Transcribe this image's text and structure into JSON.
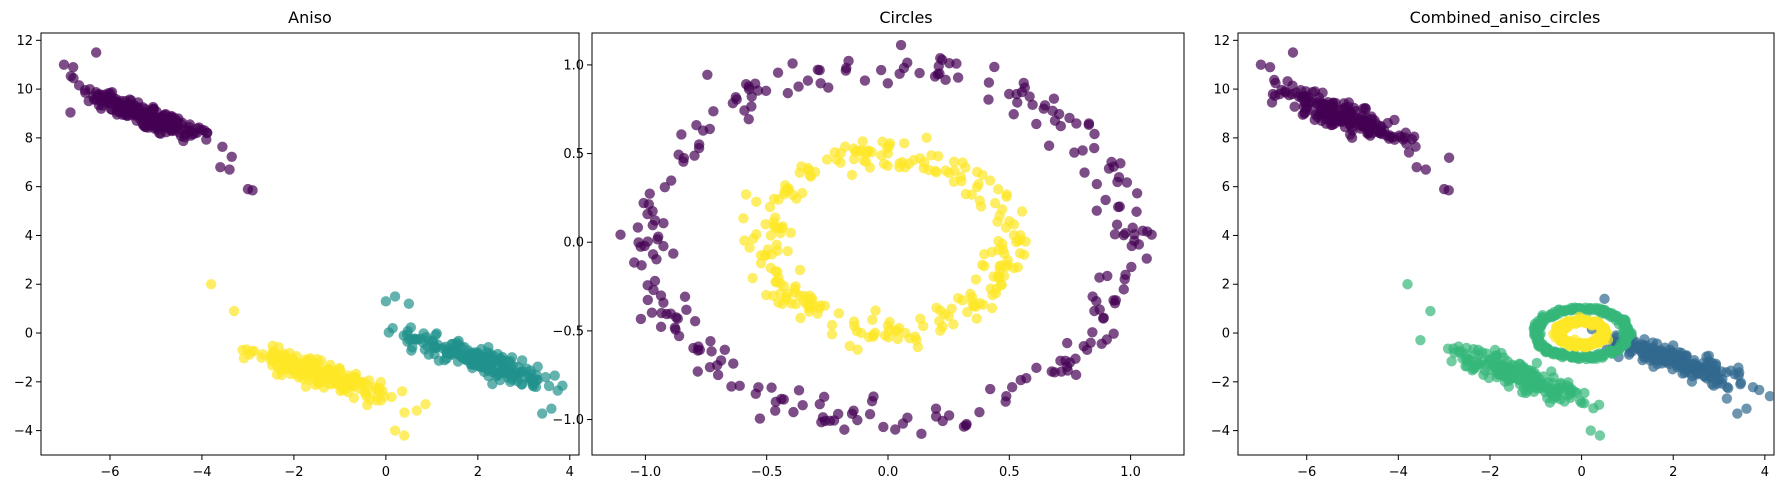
{
  "chart_data": [
    {
      "type": "scatter",
      "title": "Aniso",
      "xlabel": "",
      "ylabel": "",
      "xlim": [
        -7.5,
        4.2
      ],
      "ylim": [
        -5,
        12.3
      ],
      "xticks": [
        -6,
        -4,
        -2,
        0,
        2,
        4
      ],
      "yticks": [
        -4,
        -2,
        0,
        2,
        4,
        6,
        8,
        10,
        12
      ],
      "grid": false,
      "point_alpha": 0.7,
      "clusters": [
        {
          "label": 0,
          "color": "#440154",
          "center": [
            -5.2,
            8.9
          ],
          "direction": [
            0.78,
            -0.62
          ],
          "spread_along": 0.9,
          "spread_across": 0.22,
          "n": 200
        },
        {
          "label": 1,
          "color": "#21918c",
          "center": [
            2.0,
            -1.1
          ],
          "direction": [
            0.82,
            -0.57
          ],
          "spread_along": 0.9,
          "spread_across": 0.22,
          "n": 200
        },
        {
          "label": 2,
          "color": "#fde725",
          "center": [
            -1.4,
            -1.7
          ],
          "direction": [
            0.82,
            -0.57
          ],
          "spread_along": 0.85,
          "spread_across": 0.22,
          "n": 200
        }
      ],
      "extra_points": [
        {
          "x": -7.0,
          "y": 11.0,
          "label": 0
        },
        {
          "x": -6.8,
          "y": 10.9,
          "label": 0
        },
        {
          "x": -6.3,
          "y": 11.5,
          "label": 0
        },
        {
          "x": -3.6,
          "y": 6.8,
          "label": 0
        },
        {
          "x": -3.4,
          "y": 6.7,
          "label": 0
        },
        {
          "x": -3.0,
          "y": 5.9,
          "label": 0
        },
        {
          "x": -2.9,
          "y": 5.85,
          "label": 0
        },
        {
          "x": -3.8,
          "y": 2.0,
          "label": 2
        },
        {
          "x": -3.3,
          "y": 0.9,
          "label": 2
        },
        {
          "x": 0.2,
          "y": -4.0,
          "label": 2
        },
        {
          "x": 0.4,
          "y": -4.2,
          "label": 2
        },
        {
          "x": 0.0,
          "y": 1.3,
          "label": 1
        },
        {
          "x": 0.2,
          "y": 1.5,
          "label": 1
        },
        {
          "x": 0.5,
          "y": 1.2,
          "label": 1
        },
        {
          "x": 3.6,
          "y": -3.1,
          "label": 1
        },
        {
          "x": 3.4,
          "y": -3.3,
          "label": 1
        }
      ]
    },
    {
      "type": "scatter",
      "title": "Circles",
      "xlabel": "",
      "ylabel": "",
      "xlim": [
        -1.22,
        1.22
      ],
      "ylim": [
        -1.2,
        1.18
      ],
      "xticks": [
        -1.0,
        -0.5,
        0.0,
        0.5,
        1.0
      ],
      "yticks": [
        -1.0,
        -0.5,
        0.0,
        0.5,
        1.0
      ],
      "grid": false,
      "point_alpha": 0.7,
      "rings": [
        {
          "label": 0,
          "color": "#440154",
          "radius": 1.0,
          "noise": 0.05,
          "n": 250
        },
        {
          "label": 1,
          "color": "#fde725",
          "radius": 0.5,
          "noise": 0.05,
          "n": 250
        }
      ]
    },
    {
      "type": "scatter",
      "title": "Combined_aniso_circles",
      "xlabel": "",
      "ylabel": "",
      "xlim": [
        -7.5,
        4.2
      ],
      "ylim": [
        -5,
        12.3
      ],
      "xticks": [
        -6,
        -4,
        -2,
        0,
        2,
        4
      ],
      "yticks": [
        -4,
        -2,
        0,
        2,
        4,
        6,
        8,
        10,
        12
      ],
      "grid": false,
      "point_alpha": 0.7,
      "clusters": [
        {
          "label": 0,
          "color": "#440154",
          "center": [
            -5.2,
            8.9
          ],
          "direction": [
            0.78,
            -0.62
          ],
          "spread_along": 0.9,
          "spread_across": 0.22,
          "n": 200
        },
        {
          "label": 1,
          "color": "#31688e",
          "center": [
            2.0,
            -1.1
          ],
          "direction": [
            0.82,
            -0.57
          ],
          "spread_along": 0.9,
          "spread_across": 0.22,
          "n": 200
        },
        {
          "label": 3,
          "color": "#35b779",
          "center": [
            -1.4,
            -1.7
          ],
          "direction": [
            0.82,
            -0.57
          ],
          "spread_along": 0.85,
          "spread_across": 0.22,
          "n": 200
        }
      ],
      "rings": [
        {
          "label": 2,
          "color": "#35b779",
          "center": [
            0,
            0
          ],
          "radius": 1.0,
          "noise": 0.05,
          "n": 250
        },
        {
          "label": 4,
          "color": "#fde725",
          "center": [
            0,
            0
          ],
          "radius": 0.5,
          "noise": 0.05,
          "n": 250
        }
      ],
      "extra_points": [
        {
          "x": -7.0,
          "y": 11.0,
          "label": 0
        },
        {
          "x": -6.8,
          "y": 10.9,
          "label": 0
        },
        {
          "x": -6.3,
          "y": 11.5,
          "label": 0
        },
        {
          "x": -3.6,
          "y": 6.8,
          "label": 0
        },
        {
          "x": -3.4,
          "y": 6.7,
          "label": 0
        },
        {
          "x": -3.0,
          "y": 5.9,
          "label": 0
        },
        {
          "x": -2.9,
          "y": 5.85,
          "label": 0
        },
        {
          "x": -3.8,
          "y": 2.0,
          "label": 3
        },
        {
          "x": -3.3,
          "y": 0.9,
          "label": 3
        },
        {
          "x": 0.2,
          "y": -4.0,
          "label": 3
        },
        {
          "x": 0.4,
          "y": -4.2,
          "label": 3
        },
        {
          "x": 0.5,
          "y": 1.4,
          "label": 1
        },
        {
          "x": 3.6,
          "y": -3.1,
          "label": 1
        },
        {
          "x": 3.4,
          "y": -3.3,
          "label": 1
        }
      ]
    }
  ]
}
